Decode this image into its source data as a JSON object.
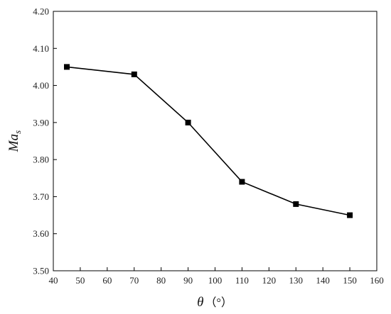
{
  "chart_data": {
    "type": "line",
    "title": "",
    "xlabel": {
      "symbol": "θ",
      "unit": "（°）"
    },
    "ylabel": {
      "main": "Ma",
      "subscript": "s"
    },
    "xlim": [
      40,
      160
    ],
    "ylim": [
      3.5,
      4.2
    ],
    "xticks": [
      "40",
      "50",
      "60",
      "70",
      "80",
      "90",
      "100",
      "110",
      "120",
      "130",
      "140",
      "150",
      "160"
    ],
    "yticks": [
      "3.50",
      "3.60",
      "3.70",
      "3.80",
      "3.90",
      "4.00",
      "4.10",
      "4.20"
    ],
    "grid": false,
    "legend": "none",
    "series": [
      {
        "marker": "square",
        "color": "#000000",
        "x": [
          45,
          70,
          90,
          110,
          130,
          150
        ],
        "y": [
          4.05,
          4.03,
          3.9,
          3.74,
          3.68,
          3.65
        ]
      }
    ]
  }
}
